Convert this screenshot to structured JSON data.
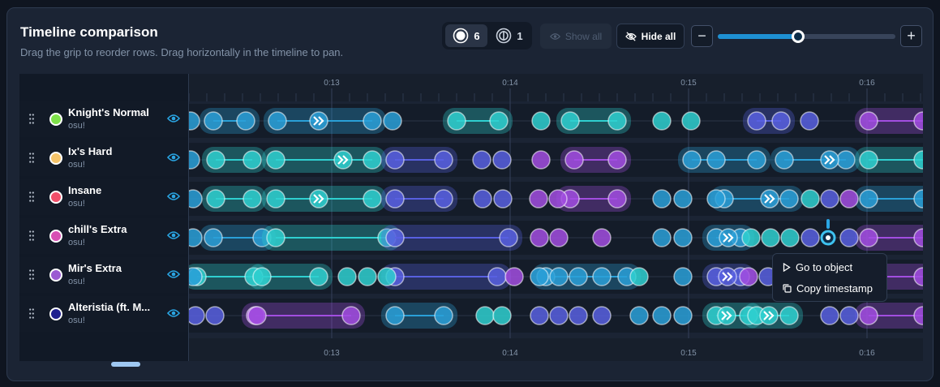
{
  "header": {
    "title": "Timeline comparison",
    "subtitle": "Drag the grip to reorder rows. Drag horizontally in the timeline to pan."
  },
  "toolbar": {
    "mode_circle_count": "6",
    "mode_spinner_count": "1",
    "show_all_label": "Show all",
    "hide_all_label": "Hide all",
    "zoom_out_label": "−",
    "zoom_in_label": "+",
    "zoom_level": 0.45
  },
  "timeline": {
    "ticks": [
      "0:13",
      "0:14",
      "0:15",
      "0:16"
    ]
  },
  "rows": [
    {
      "name": "Knight's Normal",
      "sub": "osu!",
      "color": "#7ee04a"
    },
    {
      "name": "Ix's Hard",
      "sub": "osu!",
      "color": "#f5c46a"
    },
    {
      "name": "Insane",
      "sub": "osu!",
      "color": "#f04f6a"
    },
    {
      "name": "chill's Extra",
      "sub": "osu!",
      "color": "#d84fb4"
    },
    {
      "name": "Mir's Extra",
      "sub": "osu!",
      "color": "#9b5ad2"
    },
    {
      "name": "Alteristia (ft. M...",
      "sub": "osu!",
      "color": "#1e1f8f"
    }
  ],
  "context_menu": {
    "items": [
      {
        "label": "Go to object",
        "icon": "play-icon"
      },
      {
        "label": "Copy timestamp",
        "icon": "copy-icon"
      }
    ]
  },
  "colors": {
    "cyan": "#2fd0d0",
    "blue": "#2aa0d8",
    "indigo": "#5860e0",
    "purple": "#a24ee0",
    "accent": "#1e90d2"
  }
}
